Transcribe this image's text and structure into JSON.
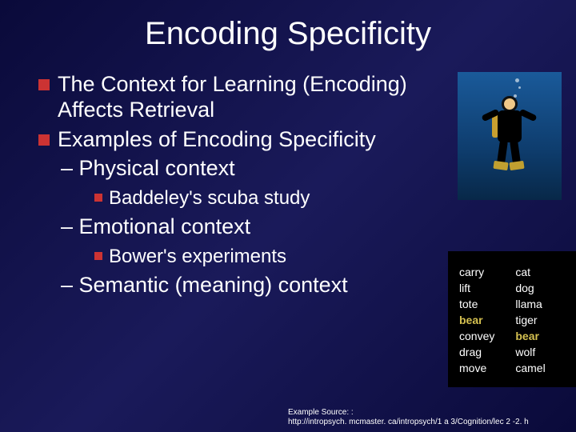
{
  "title": "Encoding Specificity",
  "bullets": {
    "b1": "The Context for Learning (Encoding) Affects Retrieval",
    "b2": "Examples of Encoding Specificity",
    "d1": "– Physical context",
    "s1": "Baddeley's scuba study",
    "d2": "– Emotional context",
    "s2": "Bower's experiments",
    "d3": "– Semantic (meaning) context"
  },
  "footer": {
    "line1": "Example Source: :",
    "line2": "http://intropsych. mcmaster. ca/intropsych/1 a 3/Cognition/lec 2 -2. h"
  },
  "word_list": {
    "left": [
      "carry",
      "lift",
      "tote",
      "bear",
      "convey",
      "drag",
      "move"
    ],
    "right": [
      "cat",
      "dog",
      "llama",
      "tiger",
      "bear",
      "wolf",
      "camel"
    ],
    "highlight_color": "#d4c050",
    "text_color": "#ffffff",
    "background": "#000000",
    "highlighted_word": "bear"
  },
  "scuba": {
    "bg_top": "#1a5a9a",
    "bg_bottom": "#082848"
  },
  "colors": {
    "slide_bg": "#0a0a3a",
    "bullet_marker": "#cc3333",
    "text": "#ffffff"
  }
}
